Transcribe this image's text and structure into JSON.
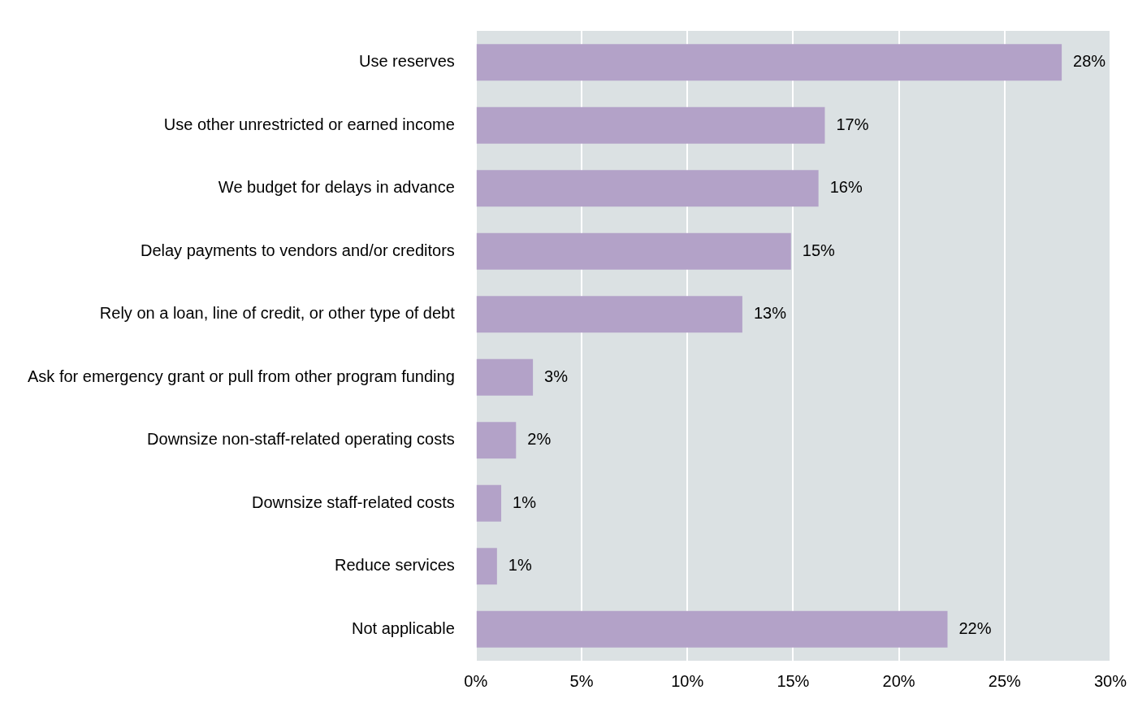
{
  "chart_data": {
    "type": "bar",
    "orientation": "horizontal",
    "categories": [
      "Use reserves",
      "Use other unrestricted or earned income",
      "We budget for delays in advance",
      "Delay payments to vendors and/or creditors",
      "Rely on a loan, line of credit, or other type of debt",
      "Ask for emergency grant or pull from other program funding",
      "Downsize non-staff-related operating costs",
      "Downsize staff-related costs",
      "Reduce services",
      "Not applicable"
    ],
    "values": [
      27.7,
      16.5,
      16.2,
      14.9,
      12.6,
      2.7,
      1.9,
      1.2,
      1.0,
      22.3
    ],
    "value_labels": [
      "28%",
      "17%",
      "16%",
      "15%",
      "13%",
      "3%",
      "2%",
      "1%",
      "1%",
      "22%"
    ],
    "color": "#b3a2c8",
    "xlim": [
      0,
      30
    ],
    "xticks": [
      {
        "value": 0,
        "label": "0%"
      },
      {
        "value": 5,
        "label": "5%"
      },
      {
        "value": 10,
        "label": "10%"
      },
      {
        "value": 15,
        "label": "15%"
      },
      {
        "value": 20,
        "label": "20%"
      },
      {
        "value": 25,
        "label": "25%"
      },
      {
        "value": 30,
        "label": "30%"
      }
    ],
    "grid": "x",
    "legend": false
  }
}
